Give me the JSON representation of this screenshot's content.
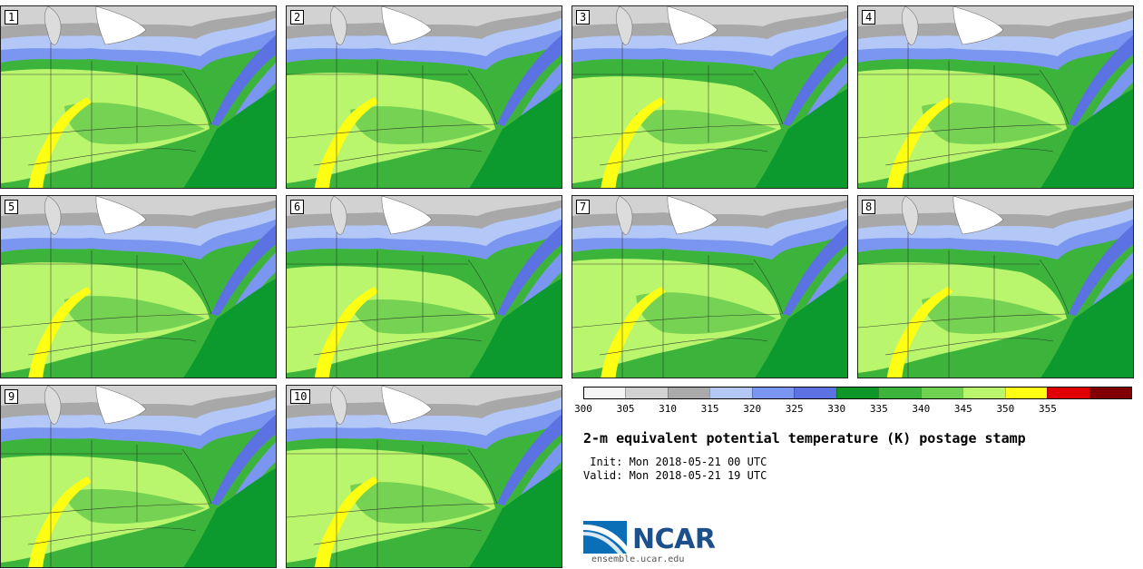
{
  "panels": [
    {
      "label": "1"
    },
    {
      "label": "2"
    },
    {
      "label": "3"
    },
    {
      "label": "4"
    },
    {
      "label": "5"
    },
    {
      "label": "6"
    },
    {
      "label": "7"
    },
    {
      "label": "8"
    },
    {
      "label": "9"
    },
    {
      "label": "10"
    }
  ],
  "colorbar": {
    "ticks": [
      "300",
      "305",
      "310",
      "315",
      "320",
      "325",
      "330",
      "335",
      "340",
      "345",
      "350",
      "355"
    ],
    "colors": [
      "#f4f4f4",
      "#d2d2d2",
      "#aaaaaa",
      "#b4c8f8",
      "#7b96f0",
      "#5c72e2",
      "#0f9628",
      "#3cb43c",
      "#6ed250",
      "#baf56e",
      "#ffff14",
      "#e00000",
      "#800000"
    ]
  },
  "map_colors": {
    "lake": "#dcdcdc",
    "land_cold": "#a8a8a8",
    "ocean": "#0c9a2e",
    "mid_green": "#3cb43c",
    "light_green": "#baf56e",
    "yellow": "#ffff14"
  },
  "title": "2-m equivalent potential temperature (K) postage stamp",
  "init": " Init: Mon 2018-05-21 00 UTC",
  "valid": "Valid: Mon 2018-05-21 19 UTC",
  "logo": {
    "text": "NCAR",
    "site": "ensemble.ucar.edu"
  }
}
